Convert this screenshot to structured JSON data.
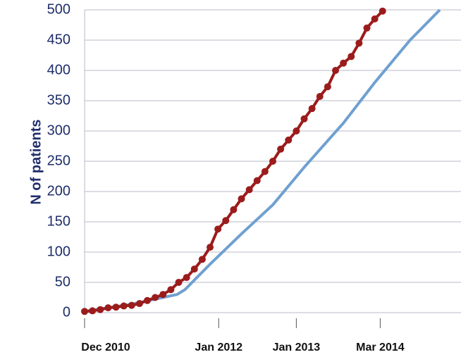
{
  "chart_data": {
    "type": "line",
    "y_label": "N of patients",
    "xlim": [
      0,
      48
    ],
    "ylim": [
      0,
      500
    ],
    "xticks": [
      {
        "value": 0,
        "label": "Dec 2010"
      },
      {
        "value": 17.1,
        "label": "Jan 2012"
      },
      {
        "value": 27,
        "label": "Jan 2013"
      },
      {
        "value": 37.7,
        "label": "Mar  2014"
      }
    ],
    "yticks": [
      0,
      50,
      100,
      150,
      200,
      250,
      300,
      350,
      400,
      450,
      500
    ],
    "grid": true,
    "series": [
      {
        "color": "#6fa0d0",
        "markers": false,
        "x": [
          0,
          6,
          11.8,
          12.8,
          16,
          20,
          24,
          28,
          33,
          37,
          41.5,
          45.3
        ],
        "values": [
          2,
          14,
          30,
          38,
          80,
          130,
          178,
          240,
          313,
          380,
          450,
          500
        ]
      },
      {
        "color": "#9b1c1c",
        "markers": true,
        "x": [
          0,
          1,
          2,
          3,
          4,
          5,
          6,
          7,
          8,
          9,
          10,
          11,
          12,
          13,
          14,
          15,
          16,
          17,
          18,
          19,
          20,
          21,
          22,
          23,
          24,
          25,
          26,
          27,
          28,
          29,
          30,
          31,
          32,
          33,
          34,
          35,
          36,
          37,
          38
        ],
        "values": [
          2,
          3,
          5,
          8,
          9,
          11,
          12,
          15,
          20,
          25,
          30,
          38,
          50,
          58,
          72,
          88,
          108,
          138,
          152,
          170,
          188,
          203,
          218,
          233,
          250,
          270,
          285,
          300,
          320,
          337,
          357,
          373,
          400,
          412,
          423,
          445,
          470,
          485,
          498
        ]
      }
    ]
  }
}
